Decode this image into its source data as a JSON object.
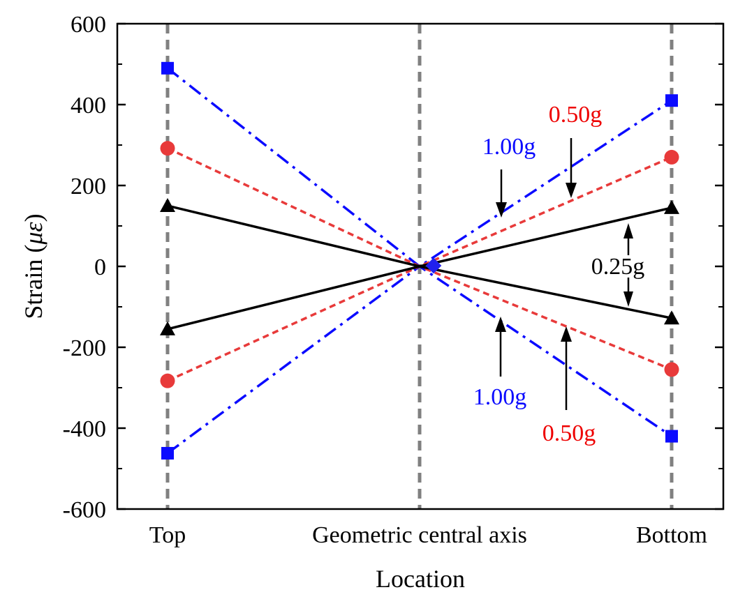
{
  "chart_data": {
    "type": "line",
    "xlabel": "Location",
    "ylabel_prefix": "Strain (",
    "ylabel_symbol": "με",
    "ylabel_suffix": ")",
    "categories": [
      "Top",
      "Geometric central axis",
      "Bottom"
    ],
    "ylim": [
      -600,
      600
    ],
    "yticks": [
      -600,
      -400,
      -200,
      0,
      200,
      400,
      600
    ],
    "ytick_labels": [
      "-600",
      "-400",
      "-200",
      "0",
      "200",
      "400",
      "600"
    ],
    "y_minor_step": 100,
    "grid": false,
    "legend": "none",
    "series": [
      {
        "group": "1.00g",
        "color": "#0b0bff",
        "marker": "square",
        "dash": "dashdot",
        "values": [
          490,
          0,
          410
        ]
      },
      {
        "group": "1.00g",
        "color": "#0b0bff",
        "marker": "square",
        "dash": "dashdot",
        "values": [
          -462,
          0,
          -420
        ]
      },
      {
        "group": "0.50g",
        "color": "#e83a3a",
        "marker": "circle",
        "dash": "dash",
        "values": [
          292,
          0,
          270
        ]
      },
      {
        "group": "0.50g",
        "color": "#e83a3a",
        "marker": "circle",
        "dash": "dash",
        "values": [
          -283,
          0,
          -255
        ]
      },
      {
        "group": "0.25g",
        "color": "#000000",
        "marker": "triangle",
        "dash": "solid",
        "values": [
          150,
          0,
          145
        ]
      },
      {
        "group": "0.25g",
        "color": "#000000",
        "marker": "triangle",
        "dash": "solid",
        "values": [
          -155,
          0,
          -128
        ]
      }
    ],
    "annotations": [
      {
        "text": "0.50g",
        "color": "#ee0000"
      },
      {
        "text": "1.00g",
        "color": "#0b0bff"
      },
      {
        "text": "0.25g",
        "color": "#000000"
      },
      {
        "text": "1.00g",
        "color": "#0b0bff"
      },
      {
        "text": "0.50g",
        "color": "#ee0000"
      }
    ]
  }
}
